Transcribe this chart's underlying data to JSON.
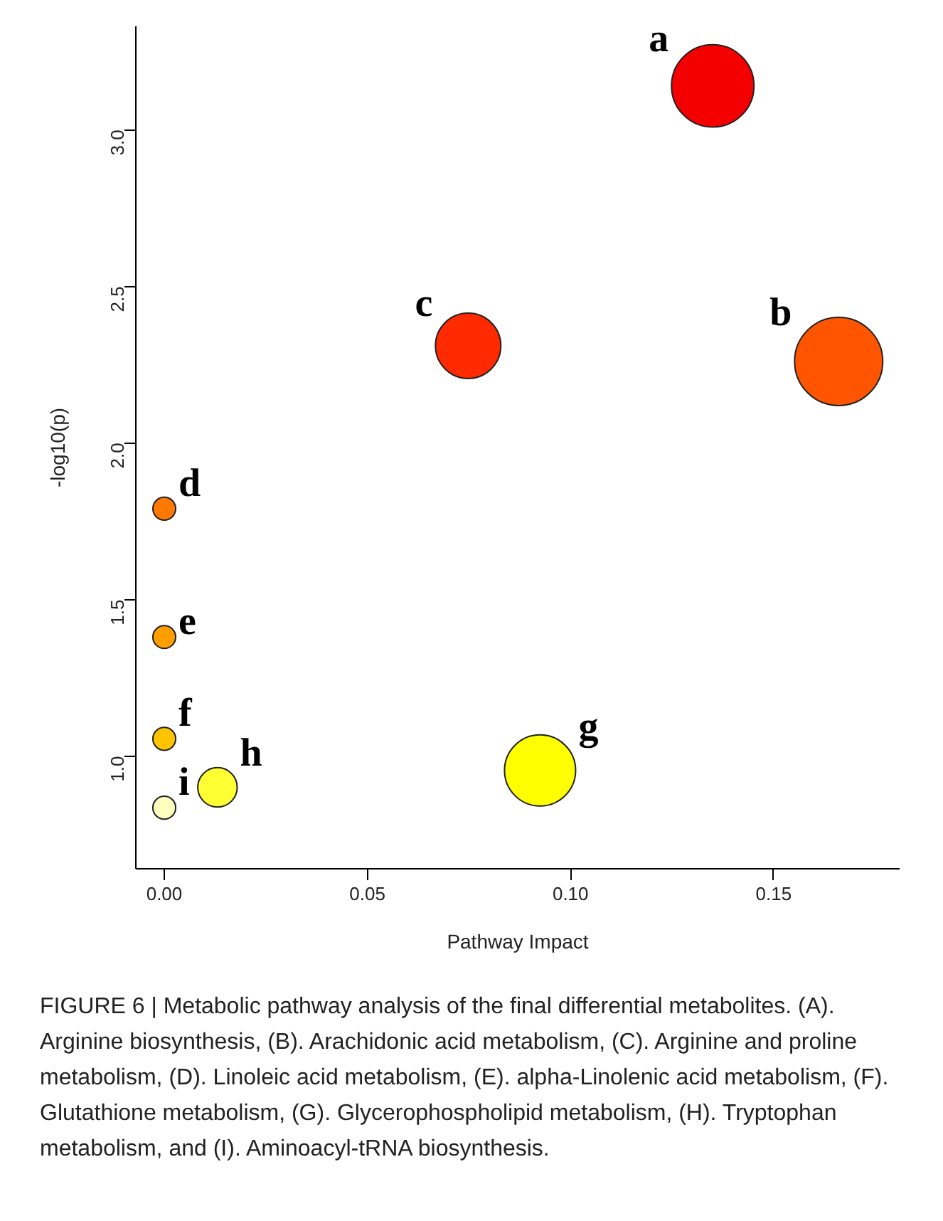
{
  "chart_data": {
    "type": "bubble",
    "xlabel": "Pathway Impact",
    "ylabel": "-log10(p)",
    "xlim": [
      -0.007,
      0.181
    ],
    "ylim": [
      0.64,
      3.33
    ],
    "xticks": [
      {
        "value": 0,
        "label": "0.00"
      },
      0.05,
      {
        "value": 0.1,
        "label": "0.10"
      },
      0.15
    ],
    "yticks": [
      {
        "value": 1,
        "label": "1.0"
      },
      1.5,
      {
        "value": 2,
        "label": "2.0"
      },
      2.5,
      {
        "value": 3,
        "label": "3.0"
      }
    ],
    "grid": false,
    "x": [
      0.135,
      0.166,
      0.0748,
      0,
      0,
      0,
      0.0925,
      0.0131,
      0
    ],
    "values": [
      3.14,
      2.26,
      2.31,
      1.79,
      1.38,
      1.055,
      0.954,
      0.9,
      0.835
    ],
    "sizes": [
      0.875,
      1,
      0.55,
      0.067,
      0.067,
      0.067,
      0.65,
      0.2,
      0.067
    ],
    "colors": [
      "#f50000",
      "#ff5500",
      "#ff2a00",
      "#ff7800",
      "#ff9e00",
      "#ffc400",
      "#ffff00",
      "#ffff33",
      "#ffffbf"
    ],
    "annotations": [
      {
        "text": "a",
        "x": 0.135,
        "y": 3.14
      },
      {
        "text": "b",
        "x": 0.166,
        "y": 2.26
      },
      {
        "text": "c",
        "x": 0.0748,
        "y": 2.31
      },
      {
        "text": "d",
        "x": 0,
        "y": 1.79
      },
      {
        "text": "e",
        "x": 0,
        "y": 1.38
      },
      {
        "text": "f",
        "x": 0,
        "y": 1.055
      },
      {
        "text": "g",
        "x": 0.0925,
        "y": 0.954
      },
      {
        "text": "h",
        "x": 0.0131,
        "y": 0.9
      },
      {
        "text": "i",
        "x": 0,
        "y": 0.835
      },
      "FIGURE 6 | Metabolic pathway analysis of the final differential metabolites. (A). Arginine biosynthesis, (B). Arachidonic acid metabolism, (C). Arginine and proline metabolism, (D). Linoleic acid metabolism, (E). alpha-Linolenic acid metabolism, (F). Glutathione metabolism, (G). Glycerophospholipid metabolism, (H). Tryptophan metabolism, and (I). Aminoacyl-tRNA biosynthesis."
    ]
  }
}
